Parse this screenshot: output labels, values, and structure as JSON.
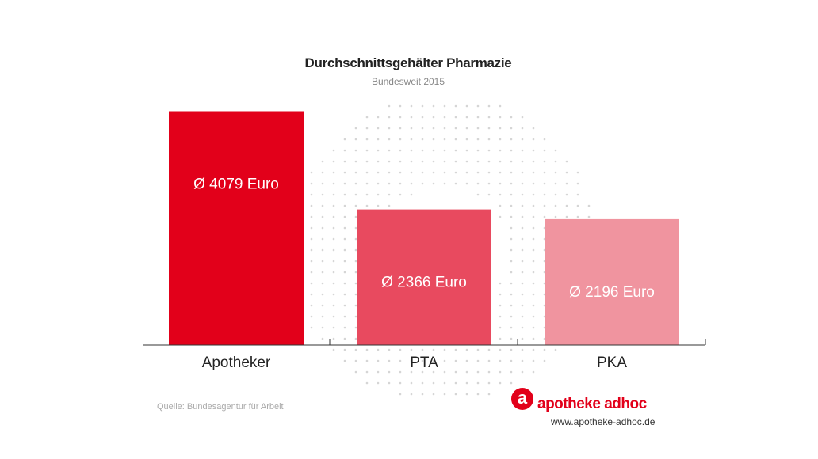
{
  "header": {
    "title": "Durchschnittsgehälter Pharmazie",
    "subtitle": "Bundesweit 2015"
  },
  "footer": {
    "source": "Quelle: Bundesagentur für Arbeit"
  },
  "brand": {
    "logo_letter": "a",
    "name": "apotheke adhoc",
    "url": "www.apotheke-adhoc.de",
    "color": "#e2001a"
  },
  "chart_data": {
    "type": "bar",
    "title": "Durchschnittsgehälter Pharmazie",
    "subtitle": "Bundesweit 2015",
    "categories": [
      "Apotheker",
      "PTA",
      "PKA"
    ],
    "values": [
      4079,
      2366,
      2196
    ],
    "data_labels": [
      "Ø 4079 Euro",
      "Ø 2366 Euro",
      "Ø 2196 Euro"
    ],
    "colors": [
      "#e2001a",
      "#e84a5f",
      "#f0949f"
    ],
    "ylim": [
      0,
      4500
    ],
    "grid": false,
    "legend": "none"
  }
}
